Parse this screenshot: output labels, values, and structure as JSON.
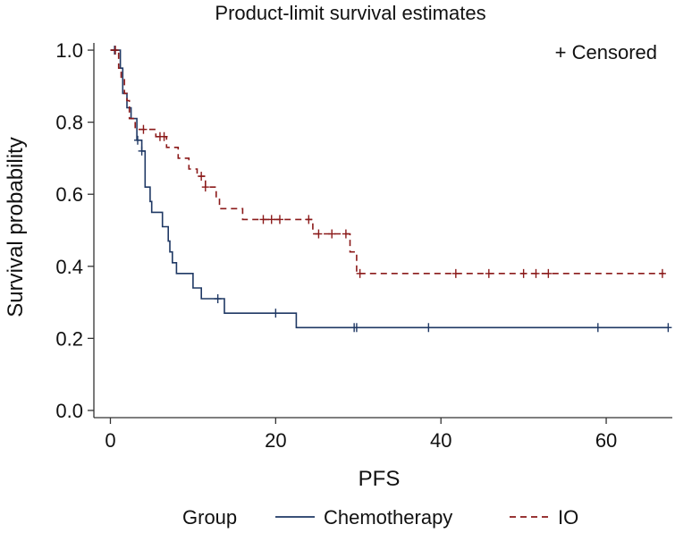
{
  "chart_data": {
    "type": "line",
    "title": "Product-limit survival estimates",
    "xlabel": "PFS",
    "ylabel": "Survival probability",
    "xlim": [
      -2,
      68
    ],
    "ylim": [
      -0.02,
      1.02
    ],
    "xticks": [
      0,
      20,
      40,
      60
    ],
    "xtick_labels": [
      "0",
      "20",
      "40",
      "60"
    ],
    "yticks": [
      0.0,
      0.2,
      0.4,
      0.6,
      0.8,
      1.0
    ],
    "ytick_labels": [
      "0.0",
      "0.2",
      "0.4",
      "0.6",
      "0.8",
      "1.0"
    ],
    "grid": false,
    "censor_legend": "+ Censored",
    "legend": {
      "title": "Group",
      "placement": "bottom"
    },
    "series": [
      {
        "name": "Chemotherapy",
        "color": "#1f3864",
        "dash": "solid",
        "steps": [
          [
            0,
            1.0
          ],
          [
            1.2,
            1.0
          ],
          [
            1.2,
            0.95
          ],
          [
            1.5,
            0.95
          ],
          [
            1.5,
            0.88
          ],
          [
            2.0,
            0.88
          ],
          [
            2.0,
            0.84
          ],
          [
            2.5,
            0.84
          ],
          [
            2.5,
            0.81
          ],
          [
            3.2,
            0.81
          ],
          [
            3.2,
            0.75
          ],
          [
            3.8,
            0.75
          ],
          [
            3.8,
            0.72
          ],
          [
            4.2,
            0.72
          ],
          [
            4.2,
            0.62
          ],
          [
            4.8,
            0.62
          ],
          [
            4.8,
            0.58
          ],
          [
            5.0,
            0.58
          ],
          [
            5.0,
            0.55
          ],
          [
            6.3,
            0.55
          ],
          [
            6.3,
            0.51
          ],
          [
            7.0,
            0.51
          ],
          [
            7.0,
            0.47
          ],
          [
            7.2,
            0.47
          ],
          [
            7.2,
            0.44
          ],
          [
            7.5,
            0.44
          ],
          [
            7.5,
            0.41
          ],
          [
            8.0,
            0.41
          ],
          [
            8.0,
            0.38
          ],
          [
            10.0,
            0.38
          ],
          [
            10.0,
            0.34
          ],
          [
            11.0,
            0.34
          ],
          [
            11.0,
            0.31
          ],
          [
            13.8,
            0.31
          ],
          [
            13.8,
            0.27
          ],
          [
            22.5,
            0.27
          ],
          [
            22.5,
            0.23
          ],
          [
            67.5,
            0.23
          ]
        ],
        "censored": [
          [
            0.5,
            1.0
          ],
          [
            3.3,
            0.75
          ],
          [
            3.8,
            0.72
          ],
          [
            13.0,
            0.31
          ],
          [
            20.0,
            0.27
          ],
          [
            29.5,
            0.23
          ],
          [
            29.8,
            0.23
          ],
          [
            38.5,
            0.23
          ],
          [
            59.0,
            0.23
          ],
          [
            67.5,
            0.23
          ]
        ]
      },
      {
        "name": "IO",
        "color": "#8b1a1a",
        "dash": "dashed",
        "steps": [
          [
            0,
            1.0
          ],
          [
            1.0,
            1.0
          ],
          [
            1.0,
            0.95
          ],
          [
            1.3,
            0.95
          ],
          [
            1.3,
            0.92
          ],
          [
            1.7,
            0.92
          ],
          [
            1.7,
            0.88
          ],
          [
            2.0,
            0.88
          ],
          [
            2.0,
            0.86
          ],
          [
            2.3,
            0.86
          ],
          [
            2.3,
            0.81
          ],
          [
            3.0,
            0.81
          ],
          [
            3.0,
            0.78
          ],
          [
            5.5,
            0.78
          ],
          [
            5.5,
            0.76
          ],
          [
            6.8,
            0.76
          ],
          [
            6.8,
            0.73
          ],
          [
            8.2,
            0.73
          ],
          [
            8.2,
            0.7
          ],
          [
            9.5,
            0.7
          ],
          [
            9.5,
            0.67
          ],
          [
            10.5,
            0.67
          ],
          [
            10.5,
            0.65
          ],
          [
            11.5,
            0.65
          ],
          [
            11.5,
            0.62
          ],
          [
            12.8,
            0.62
          ],
          [
            12.8,
            0.59
          ],
          [
            13.2,
            0.59
          ],
          [
            13.2,
            0.56
          ],
          [
            16.0,
            0.56
          ],
          [
            16.0,
            0.53
          ],
          [
            24.5,
            0.53
          ],
          [
            24.5,
            0.49
          ],
          [
            29.0,
            0.49
          ],
          [
            29.0,
            0.44
          ],
          [
            29.8,
            0.44
          ],
          [
            29.8,
            0.38
          ],
          [
            67.0,
            0.38
          ]
        ],
        "censored": [
          [
            0.6,
            1.0
          ],
          [
            4.0,
            0.78
          ],
          [
            6.0,
            0.76
          ],
          [
            6.5,
            0.76
          ],
          [
            11.0,
            0.65
          ],
          [
            11.5,
            0.62
          ],
          [
            18.5,
            0.53
          ],
          [
            19.5,
            0.53
          ],
          [
            20.5,
            0.53
          ],
          [
            24.0,
            0.53
          ],
          [
            25.2,
            0.49
          ],
          [
            26.8,
            0.49
          ],
          [
            28.5,
            0.49
          ],
          [
            30.2,
            0.38
          ],
          [
            41.8,
            0.38
          ],
          [
            45.8,
            0.38
          ],
          [
            50.0,
            0.38
          ],
          [
            51.5,
            0.38
          ],
          [
            53.0,
            0.38
          ],
          [
            66.8,
            0.38
          ]
        ]
      }
    ]
  }
}
